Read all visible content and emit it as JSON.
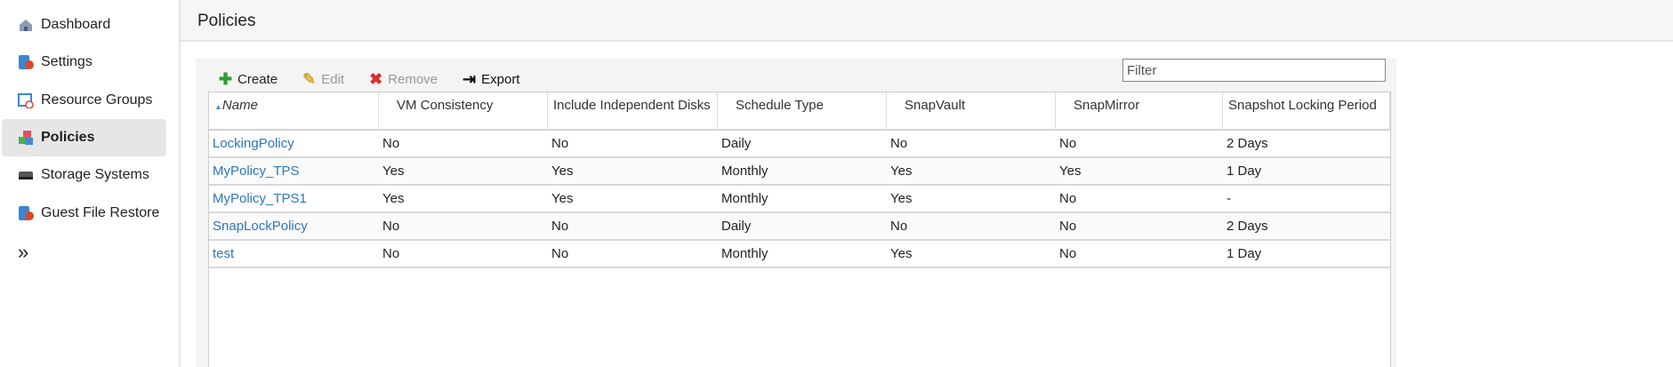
{
  "sidebar": {
    "items": [
      {
        "label": "Dashboard",
        "icon": "home-icon"
      },
      {
        "label": "Settings",
        "icon": "settings-icon"
      },
      {
        "label": "Resource Groups",
        "icon": "calendar-clock-icon"
      },
      {
        "label": "Policies",
        "icon": "policies-cubes-icon",
        "active": true
      },
      {
        "label": "Storage Systems",
        "icon": "storage-icon"
      },
      {
        "label": "Guest File Restore",
        "icon": "restore-icon"
      }
    ],
    "expand_icon": "double-chevron-right-icon"
  },
  "header": {
    "title": "Policies"
  },
  "toolbar": {
    "create": "Create",
    "edit": "Edit",
    "remove": "Remove",
    "export": "Export"
  },
  "filter": {
    "placeholder": "Filter",
    "value": ""
  },
  "table": {
    "columns": [
      "Name",
      "VM Consistency",
      "Include Independent Disks",
      "Schedule Type",
      "SnapVault",
      "SnapMirror",
      "Snapshot Locking Period"
    ],
    "sort": {
      "column": "Name",
      "direction": "ascending"
    },
    "rows": [
      [
        "LockingPolicy",
        "No",
        "No",
        "Daily",
        "No",
        "No",
        "2 Days"
      ],
      [
        "MyPolicy_TPS",
        "Yes",
        "Yes",
        "Monthly",
        "Yes",
        "Yes",
        "1 Day"
      ],
      [
        "MyPolicy_TPS1",
        "Yes",
        "Yes",
        "Monthly",
        "Yes",
        "No",
        "-"
      ],
      [
        "SnapLockPolicy",
        "No",
        "No",
        "Daily",
        "No",
        "No",
        "2 Days"
      ],
      [
        "test",
        "No",
        "No",
        "Monthly",
        "Yes",
        "No",
        "1 Day"
      ]
    ]
  },
  "colors": {
    "link": "#2f76b9",
    "create": "#2e9e2e",
    "remove": "#d9302c",
    "active_nav": "#e6e6e6"
  }
}
